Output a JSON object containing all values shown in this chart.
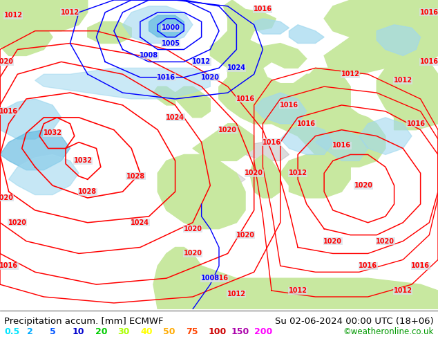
{
  "title_left": "Precipitation accum. [mm] ECMWF",
  "title_right": "Su 02-06-2024 00:00 UTC (18+06)",
  "credit": "©weatheronline.co.uk",
  "legend_values": [
    "0.5",
    "2",
    "5",
    "10",
    "20",
    "30",
    "40",
    "50",
    "75",
    "100",
    "150",
    "200"
  ],
  "legend_colors": [
    "#00e5ff",
    "#00aaff",
    "#0055ff",
    "#0000cc",
    "#00cc00",
    "#aaff00",
    "#ffff00",
    "#ffaa00",
    "#ff4400",
    "#cc0000",
    "#aa00aa",
    "#ff00ff"
  ],
  "ocean_color": "#d8dfe8",
  "land_color": "#c8e8a0",
  "precip_light": "#a0d8ef",
  "precip_med": "#60b8e0",
  "precip_heavy": "#2090d0",
  "title_fontsize": 9.5,
  "legend_fontsize": 9,
  "credit_fontsize": 8.5,
  "fig_width": 6.34,
  "fig_height": 4.9,
  "dpi": 100,
  "label_fontsize": 7
}
